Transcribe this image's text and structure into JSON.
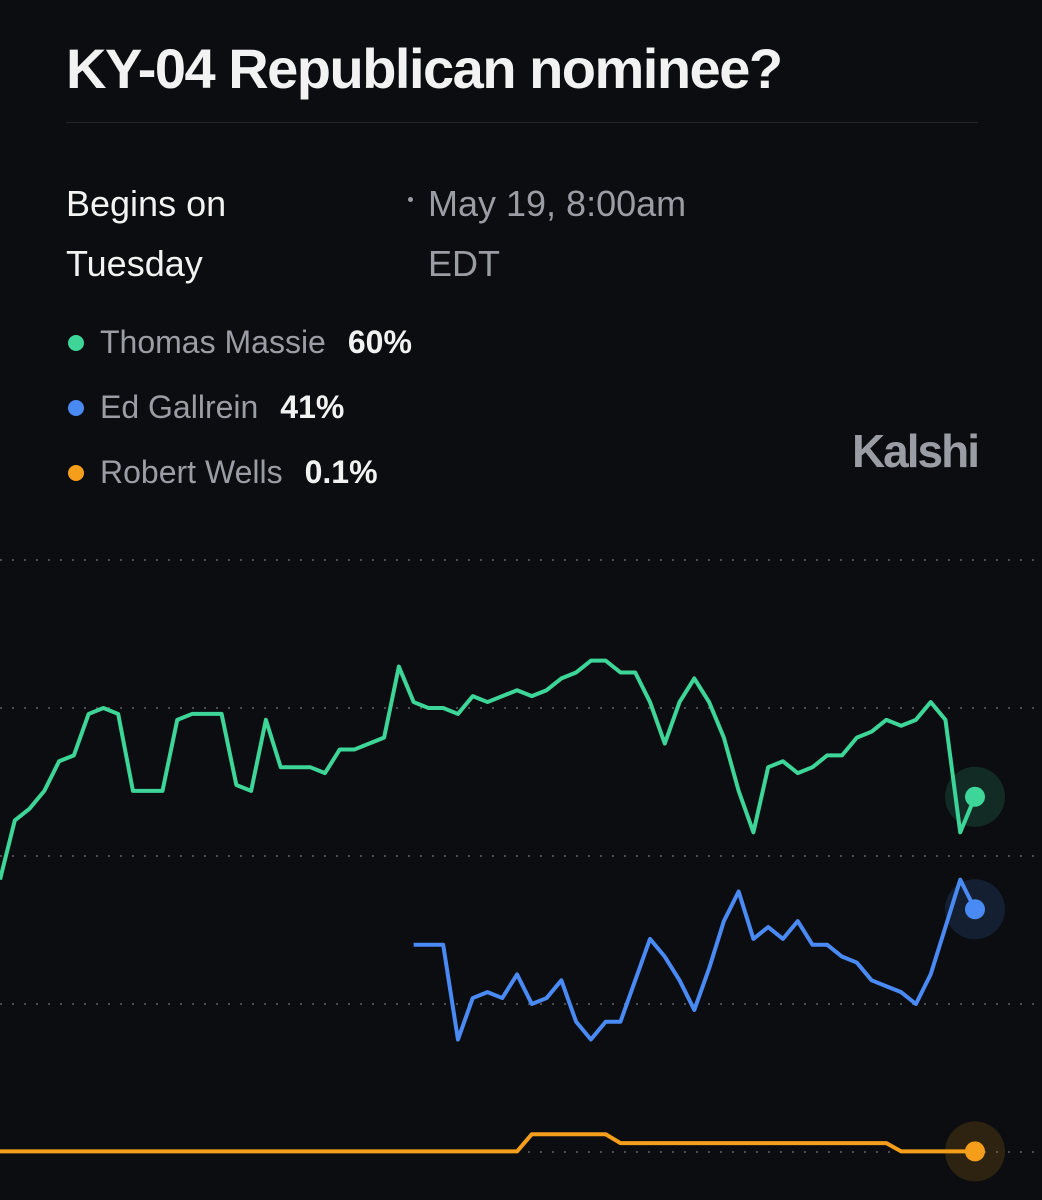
{
  "chart_data": {
    "type": "line",
    "title": "KY-04 Republican nominee?",
    "begins": "Begins on Tuesday",
    "date": "May 19, 8:00am EDT",
    "brand": "Kalshi",
    "ylim": [
      0,
      100
    ],
    "yticks": [
      0,
      25,
      50,
      75,
      100
    ],
    "grid": true,
    "series": [
      {
        "name": "Thomas Massie",
        "color": "#3dd598",
        "legend_value": "60%",
        "values": [
          46,
          56,
          58,
          61,
          66,
          67,
          74,
          75,
          74,
          61,
          61,
          61,
          73,
          74,
          74,
          74,
          62,
          61,
          73,
          65,
          65,
          65,
          64,
          68,
          68,
          69,
          70,
          82,
          76,
          75,
          75,
          74,
          77,
          76,
          77,
          78,
          77,
          78,
          80,
          81,
          83,
          83,
          81,
          81,
          76,
          69,
          76,
          80,
          76,
          70,
          61,
          54,
          65,
          66,
          64,
          65,
          67,
          67,
          70,
          71,
          73,
          72,
          73,
          76,
          73,
          54,
          60
        ]
      },
      {
        "name": "Ed Gallrein",
        "color": "#4a8af4",
        "legend_value": "41%",
        "values": [
          null,
          null,
          null,
          null,
          null,
          null,
          null,
          null,
          null,
          null,
          null,
          null,
          null,
          null,
          null,
          null,
          null,
          null,
          null,
          null,
          null,
          null,
          null,
          null,
          null,
          null,
          null,
          null,
          35,
          35,
          35,
          19,
          26,
          27,
          26,
          30,
          25,
          26,
          29,
          22,
          19,
          22,
          22,
          29,
          36,
          33,
          29,
          24,
          31,
          39,
          44,
          36,
          38,
          36,
          39,
          35,
          35,
          33,
          32,
          29,
          28,
          27,
          25,
          30,
          38,
          46,
          41
        ]
      },
      {
        "name": "Robert Wells",
        "color": "#f59e1b",
        "legend_value": "0.1%",
        "values": [
          0.1,
          0.1,
          0.1,
          0.1,
          0.1,
          0.1,
          0.1,
          0.1,
          0.1,
          0.1,
          0.1,
          0.1,
          0.1,
          0.1,
          0.1,
          0.1,
          0.1,
          0.1,
          0.1,
          0.1,
          0.1,
          0.1,
          0.1,
          0.1,
          0.1,
          0.1,
          0.1,
          0.1,
          0.1,
          0.1,
          0.1,
          0.1,
          0.1,
          0.1,
          0.1,
          0.1,
          3,
          3,
          3,
          3,
          3,
          3,
          1.5,
          1.5,
          1.5,
          1.5,
          1.5,
          1.5,
          1.5,
          1.5,
          1.5,
          1.5,
          1.5,
          1.5,
          1.5,
          1.5,
          1.5,
          1.5,
          1.5,
          1.5,
          1.5,
          0.1,
          0.1,
          0.1,
          0.1,
          0.1,
          0.1
        ]
      }
    ]
  }
}
